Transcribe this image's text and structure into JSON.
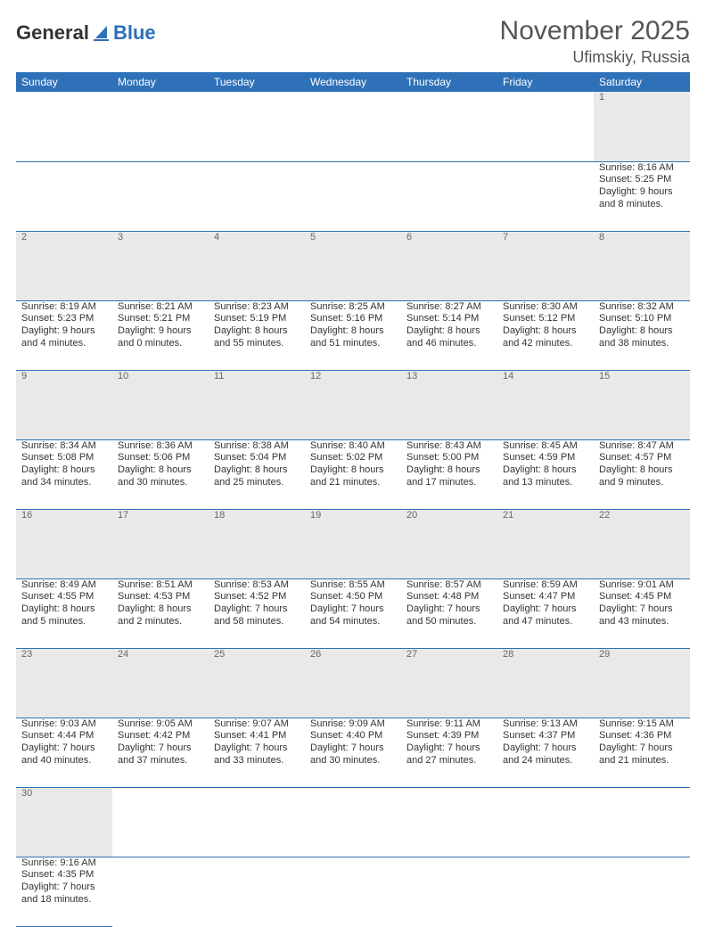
{
  "logo": {
    "part1": "General",
    "part2": "Blue"
  },
  "title": "November 2025",
  "location": "Ufimskiy, Russia",
  "colors": {
    "brand_blue": "#2e71b8",
    "daynum_bg": "#e9e9e9",
    "text_gray": "#555555",
    "text_body": "#333333"
  },
  "weekday_headers": [
    "Sunday",
    "Monday",
    "Tuesday",
    "Wednesday",
    "Thursday",
    "Friday",
    "Saturday"
  ],
  "weeks": [
    [
      null,
      null,
      null,
      null,
      null,
      null,
      {
        "d": "1",
        "sr": "Sunrise: 8:16 AM",
        "ss": "Sunset: 5:25 PM",
        "dl": "Daylight: 9 hours and 8 minutes."
      }
    ],
    [
      {
        "d": "2",
        "sr": "Sunrise: 8:19 AM",
        "ss": "Sunset: 5:23 PM",
        "dl": "Daylight: 9 hours and 4 minutes."
      },
      {
        "d": "3",
        "sr": "Sunrise: 8:21 AM",
        "ss": "Sunset: 5:21 PM",
        "dl": "Daylight: 9 hours and 0 minutes."
      },
      {
        "d": "4",
        "sr": "Sunrise: 8:23 AM",
        "ss": "Sunset: 5:19 PM",
        "dl": "Daylight: 8 hours and 55 minutes."
      },
      {
        "d": "5",
        "sr": "Sunrise: 8:25 AM",
        "ss": "Sunset: 5:16 PM",
        "dl": "Daylight: 8 hours and 51 minutes."
      },
      {
        "d": "6",
        "sr": "Sunrise: 8:27 AM",
        "ss": "Sunset: 5:14 PM",
        "dl": "Daylight: 8 hours and 46 minutes."
      },
      {
        "d": "7",
        "sr": "Sunrise: 8:30 AM",
        "ss": "Sunset: 5:12 PM",
        "dl": "Daylight: 8 hours and 42 minutes."
      },
      {
        "d": "8",
        "sr": "Sunrise: 8:32 AM",
        "ss": "Sunset: 5:10 PM",
        "dl": "Daylight: 8 hours and 38 minutes."
      }
    ],
    [
      {
        "d": "9",
        "sr": "Sunrise: 8:34 AM",
        "ss": "Sunset: 5:08 PM",
        "dl": "Daylight: 8 hours and 34 minutes."
      },
      {
        "d": "10",
        "sr": "Sunrise: 8:36 AM",
        "ss": "Sunset: 5:06 PM",
        "dl": "Daylight: 8 hours and 30 minutes."
      },
      {
        "d": "11",
        "sr": "Sunrise: 8:38 AM",
        "ss": "Sunset: 5:04 PM",
        "dl": "Daylight: 8 hours and 25 minutes."
      },
      {
        "d": "12",
        "sr": "Sunrise: 8:40 AM",
        "ss": "Sunset: 5:02 PM",
        "dl": "Daylight: 8 hours and 21 minutes."
      },
      {
        "d": "13",
        "sr": "Sunrise: 8:43 AM",
        "ss": "Sunset: 5:00 PM",
        "dl": "Daylight: 8 hours and 17 minutes."
      },
      {
        "d": "14",
        "sr": "Sunrise: 8:45 AM",
        "ss": "Sunset: 4:59 PM",
        "dl": "Daylight: 8 hours and 13 minutes."
      },
      {
        "d": "15",
        "sr": "Sunrise: 8:47 AM",
        "ss": "Sunset: 4:57 PM",
        "dl": "Daylight: 8 hours and 9 minutes."
      }
    ],
    [
      {
        "d": "16",
        "sr": "Sunrise: 8:49 AM",
        "ss": "Sunset: 4:55 PM",
        "dl": "Daylight: 8 hours and 5 minutes."
      },
      {
        "d": "17",
        "sr": "Sunrise: 8:51 AM",
        "ss": "Sunset: 4:53 PM",
        "dl": "Daylight: 8 hours and 2 minutes."
      },
      {
        "d": "18",
        "sr": "Sunrise: 8:53 AM",
        "ss": "Sunset: 4:52 PM",
        "dl": "Daylight: 7 hours and 58 minutes."
      },
      {
        "d": "19",
        "sr": "Sunrise: 8:55 AM",
        "ss": "Sunset: 4:50 PM",
        "dl": "Daylight: 7 hours and 54 minutes."
      },
      {
        "d": "20",
        "sr": "Sunrise: 8:57 AM",
        "ss": "Sunset: 4:48 PM",
        "dl": "Daylight: 7 hours and 50 minutes."
      },
      {
        "d": "21",
        "sr": "Sunrise: 8:59 AM",
        "ss": "Sunset: 4:47 PM",
        "dl": "Daylight: 7 hours and 47 minutes."
      },
      {
        "d": "22",
        "sr": "Sunrise: 9:01 AM",
        "ss": "Sunset: 4:45 PM",
        "dl": "Daylight: 7 hours and 43 minutes."
      }
    ],
    [
      {
        "d": "23",
        "sr": "Sunrise: 9:03 AM",
        "ss": "Sunset: 4:44 PM",
        "dl": "Daylight: 7 hours and 40 minutes."
      },
      {
        "d": "24",
        "sr": "Sunrise: 9:05 AM",
        "ss": "Sunset: 4:42 PM",
        "dl": "Daylight: 7 hours and 37 minutes."
      },
      {
        "d": "25",
        "sr": "Sunrise: 9:07 AM",
        "ss": "Sunset: 4:41 PM",
        "dl": "Daylight: 7 hours and 33 minutes."
      },
      {
        "d": "26",
        "sr": "Sunrise: 9:09 AM",
        "ss": "Sunset: 4:40 PM",
        "dl": "Daylight: 7 hours and 30 minutes."
      },
      {
        "d": "27",
        "sr": "Sunrise: 9:11 AM",
        "ss": "Sunset: 4:39 PM",
        "dl": "Daylight: 7 hours and 27 minutes."
      },
      {
        "d": "28",
        "sr": "Sunrise: 9:13 AM",
        "ss": "Sunset: 4:37 PM",
        "dl": "Daylight: 7 hours and 24 minutes."
      },
      {
        "d": "29",
        "sr": "Sunrise: 9:15 AM",
        "ss": "Sunset: 4:36 PM",
        "dl": "Daylight: 7 hours and 21 minutes."
      }
    ],
    [
      {
        "d": "30",
        "sr": "Sunrise: 9:16 AM",
        "ss": "Sunset: 4:35 PM",
        "dl": "Daylight: 7 hours and 18 minutes."
      },
      null,
      null,
      null,
      null,
      null,
      null
    ]
  ]
}
